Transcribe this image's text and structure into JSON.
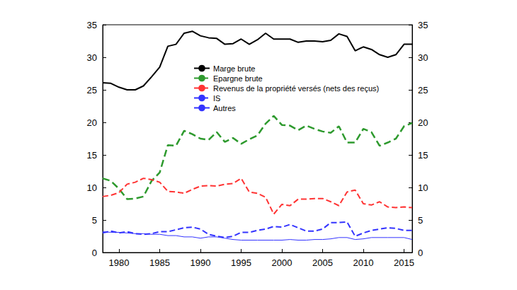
{
  "chart_data": {
    "type": "line",
    "x": [
      1978,
      1979,
      1980,
      1981,
      1982,
      1983,
      1984,
      1985,
      1986,
      1987,
      1988,
      1989,
      1990,
      1991,
      1992,
      1993,
      1994,
      1995,
      1996,
      1997,
      1998,
      1999,
      2000,
      2001,
      2002,
      2003,
      2004,
      2005,
      2006,
      2007,
      2008,
      2009,
      2010,
      2011,
      2012,
      2013,
      2014,
      2015,
      2016
    ],
    "xlim": [
      1978,
      2016
    ],
    "xticks": [
      1980,
      1985,
      1990,
      1995,
      2000,
      2005,
      2010,
      2015
    ],
    "ylim": [
      0,
      35
    ],
    "yticks": [
      0,
      5,
      10,
      15,
      20,
      25,
      30,
      35
    ],
    "y2lim": [
      0,
      35
    ],
    "y2ticks": [
      0,
      5,
      10,
      15,
      20,
      25,
      30,
      35
    ],
    "grid": false,
    "legend": "upper left",
    "series": [
      {
        "name": "Marge brute",
        "color": "#000000",
        "line_style": "solid",
        "values": [
          26.1,
          26.0,
          25.4,
          25.0,
          25.0,
          25.6,
          27.0,
          28.5,
          31.7,
          32.0,
          33.7,
          34.0,
          33.3,
          33.0,
          32.9,
          32.0,
          32.1,
          32.8,
          32.0,
          32.7,
          33.7,
          32.8,
          32.8,
          32.8,
          32.3,
          32.5,
          32.5,
          32.4,
          32.6,
          33.6,
          33.2,
          31.0,
          31.6,
          31.2,
          30.4,
          30.0,
          30.4,
          32.0,
          32.0
        ]
      },
      {
        "name": "Epargne brute",
        "color": "#2e9a2e",
        "line_style": "dashed",
        "values": [
          11.4,
          11.0,
          9.8,
          8.2,
          8.3,
          8.6,
          11.0,
          12.3,
          16.5,
          16.4,
          18.7,
          18.2,
          17.5,
          17.3,
          18.5,
          17.0,
          17.6,
          16.7,
          17.4,
          18.0,
          19.8,
          21.0,
          19.6,
          19.5,
          18.8,
          19.5,
          19.0,
          18.6,
          18.4,
          19.4,
          16.9,
          16.9,
          19.0,
          18.5,
          16.4,
          16.9,
          17.5,
          19.4,
          19.9
        ]
      },
      {
        "name": "Revenus de la propriété versés (nets des reçus)",
        "color": "#ff3333",
        "line_style": "dashed",
        "values": [
          8.6,
          8.8,
          9.2,
          10.5,
          10.8,
          11.4,
          11.2,
          10.8,
          9.4,
          9.3,
          9.1,
          9.7,
          10.2,
          10.3,
          10.2,
          10.5,
          10.6,
          11.4,
          9.3,
          9.1,
          8.5,
          5.9,
          7.4,
          7.2,
          8.2,
          8.2,
          8.3,
          8.3,
          7.8,
          7.2,
          9.3,
          9.6,
          7.5,
          7.3,
          7.8,
          7.0,
          6.9,
          7.0,
          6.9
        ]
      },
      {
        "name": "IS",
        "color": "#3333ff",
        "line_style": "dashed",
        "values": [
          3.0,
          3.3,
          3.0,
          3.2,
          2.9,
          2.8,
          2.9,
          3.2,
          3.2,
          3.5,
          3.8,
          3.9,
          3.6,
          2.8,
          2.5,
          2.3,
          2.5,
          3.1,
          3.1,
          3.4,
          3.6,
          4.0,
          3.9,
          4.3,
          3.8,
          3.3,
          3.3,
          3.6,
          4.6,
          4.6,
          4.7,
          2.5,
          3.0,
          3.4,
          3.6,
          3.8,
          3.7,
          3.4,
          3.4
        ]
      },
      {
        "name": "Autres",
        "color": "#3333ff",
        "line_style": "solid",
        "values": [
          3.2,
          3.1,
          3.1,
          3.0,
          2.9,
          2.9,
          2.8,
          2.8,
          2.6,
          2.6,
          2.4,
          2.4,
          2.2,
          2.4,
          2.4,
          2.2,
          2.0,
          1.9,
          1.9,
          1.9,
          1.9,
          1.9,
          1.9,
          2.0,
          1.9,
          1.9,
          2.0,
          2.0,
          2.1,
          2.3,
          2.3,
          2.0,
          2.1,
          2.3,
          2.3,
          2.3,
          2.3,
          2.3,
          2.0
        ]
      }
    ]
  }
}
